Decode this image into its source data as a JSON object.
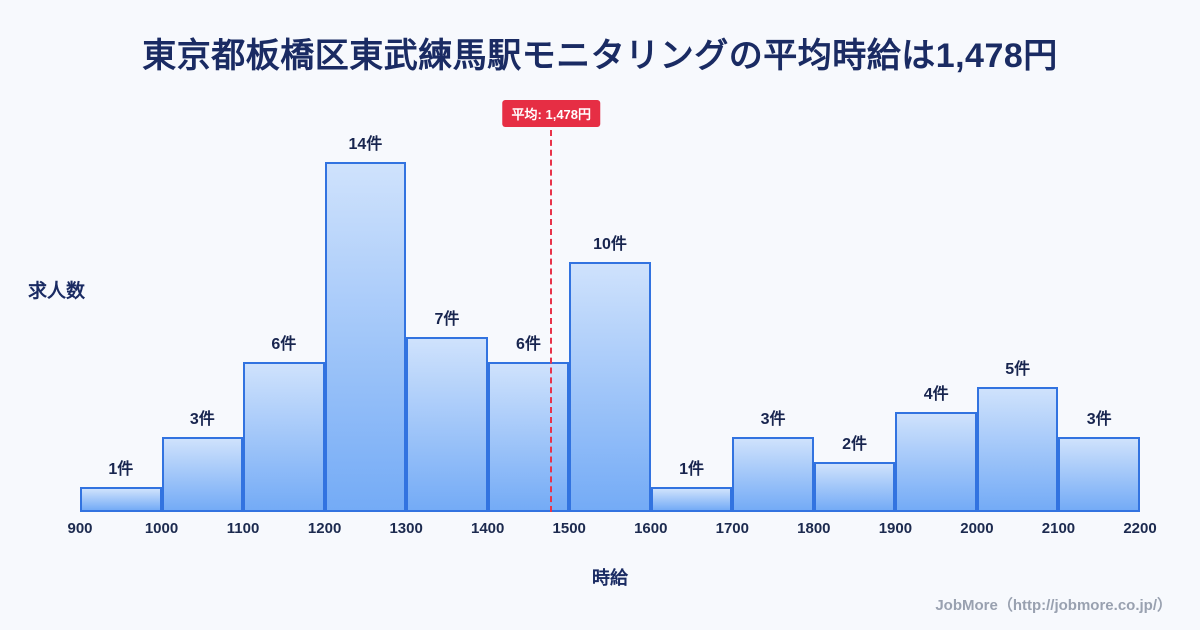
{
  "title": "東京都板橋区東武練馬駅モニタリングの平均時給は1,478円",
  "footer": {
    "credit": "JobMore（http://jobmore.co.jp/）"
  },
  "chart_data": {
    "type": "bar",
    "subtype": "histogram",
    "title": "東京都板橋区東武練馬駅モニタリングの平均時給は1,478円",
    "xlabel": "時給",
    "ylabel": "求人数",
    "bin_edges": [
      900,
      1000,
      1100,
      1200,
      1300,
      1400,
      1500,
      1600,
      1700,
      1800,
      1900,
      2000,
      2100,
      2200
    ],
    "values": [
      1,
      3,
      6,
      14,
      7,
      6,
      10,
      1,
      3,
      2,
      4,
      5,
      3
    ],
    "bar_label_suffix": "件",
    "ylim": [
      0,
      15
    ],
    "grid": false,
    "legend": false,
    "average_marker": {
      "value": 1478,
      "label": "平均: 1,478円"
    },
    "colors": {
      "background": "#f7f9fd",
      "title_text": "#1a2b63",
      "bar_fill_top": "#cfe2fc",
      "bar_fill_bottom": "#74abf6",
      "bar_border": "#3273e0",
      "average_line": "#e8334a",
      "average_badge_bg": "#e62e44",
      "footer_text": "#99a1b0"
    }
  }
}
